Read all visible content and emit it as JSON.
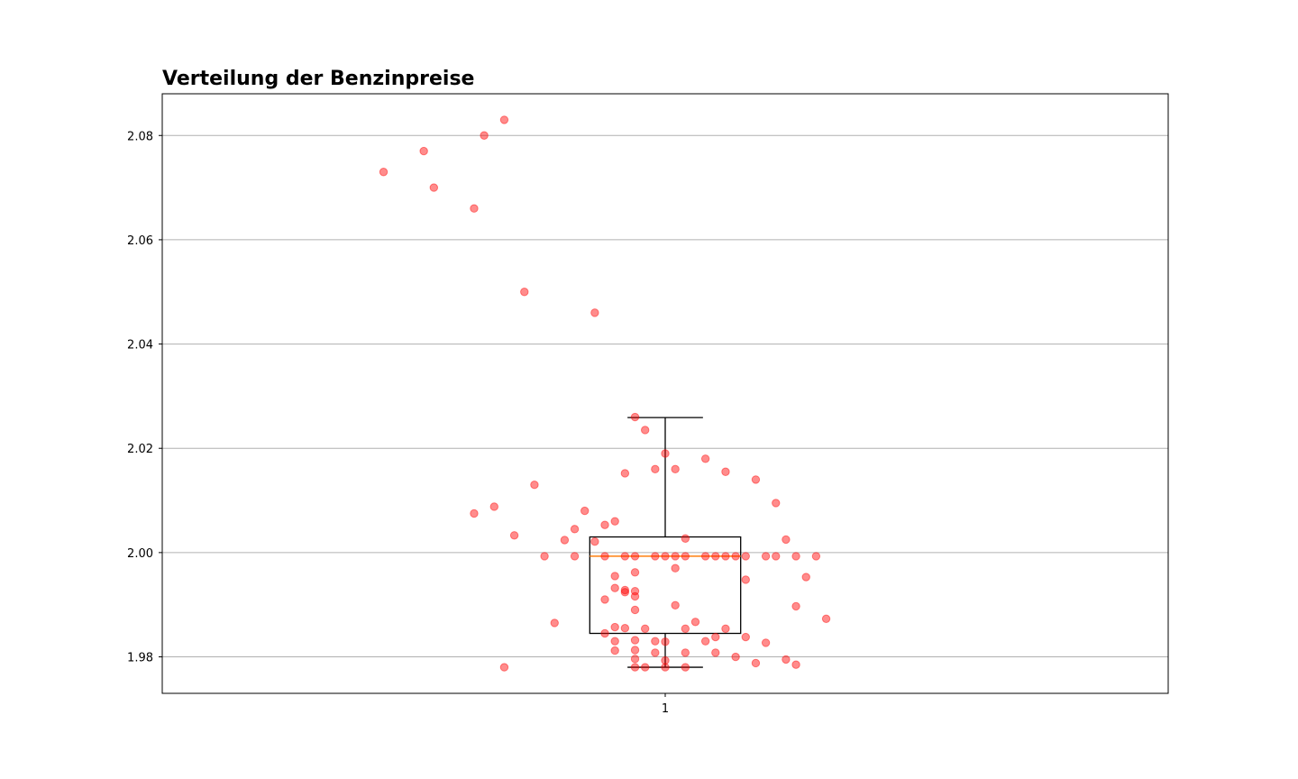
{
  "chart_data": {
    "type": "box",
    "title": "Verteilung der Benzinpreise",
    "xlabel": "",
    "ylabel": "",
    "categories": [
      "1"
    ],
    "ylim": [
      1.973,
      2.088
    ],
    "y_ticks": [
      "1.98",
      "2.00",
      "2.02",
      "2.04",
      "2.06",
      "2.08"
    ],
    "grid": "horizontal",
    "box": {
      "whisker_low": 1.978,
      "q1": 1.9845,
      "median": 1.9993,
      "q3": 2.003,
      "whisker_high": 2.0259
    },
    "colors": {
      "box": "#000000",
      "median": "#ff7f0e",
      "points": "#ff0000"
    },
    "points": [
      {
        "x": 0.84,
        "y": 2.083
      },
      {
        "x": 0.82,
        "y": 2.08
      },
      {
        "x": 0.76,
        "y": 2.077
      },
      {
        "x": 0.72,
        "y": 2.073
      },
      {
        "x": 0.77,
        "y": 2.07
      },
      {
        "x": 0.81,
        "y": 2.066
      },
      {
        "x": 0.86,
        "y": 2.05
      },
      {
        "x": 0.93,
        "y": 2.046
      },
      {
        "x": 0.97,
        "y": 2.026
      },
      {
        "x": 0.98,
        "y": 2.0235
      },
      {
        "x": 1.0,
        "y": 2.019
      },
      {
        "x": 1.04,
        "y": 2.018
      },
      {
        "x": 0.99,
        "y": 2.016
      },
      {
        "x": 1.01,
        "y": 2.016
      },
      {
        "x": 1.06,
        "y": 2.0155
      },
      {
        "x": 0.96,
        "y": 2.0152
      },
      {
        "x": 1.09,
        "y": 2.014
      },
      {
        "x": 0.87,
        "y": 2.013
      },
      {
        "x": 1.11,
        "y": 2.0095
      },
      {
        "x": 0.83,
        "y": 2.0088
      },
      {
        "x": 0.92,
        "y": 2.008
      },
      {
        "x": 0.81,
        "y": 2.0075
      },
      {
        "x": 0.95,
        "y": 2.006
      },
      {
        "x": 0.94,
        "y": 2.0053
      },
      {
        "x": 0.91,
        "y": 2.0045
      },
      {
        "x": 0.85,
        "y": 2.0033
      },
      {
        "x": 1.02,
        "y": 2.0027
      },
      {
        "x": 1.12,
        "y": 2.0025
      },
      {
        "x": 0.9,
        "y": 2.0024
      },
      {
        "x": 0.93,
        "y": 2.0021
      },
      {
        "x": 0.88,
        "y": 1.9993
      },
      {
        "x": 0.91,
        "y": 1.9993
      },
      {
        "x": 0.94,
        "y": 1.9993
      },
      {
        "x": 0.96,
        "y": 1.9993
      },
      {
        "x": 0.97,
        "y": 1.9993
      },
      {
        "x": 0.99,
        "y": 1.9993
      },
      {
        "x": 1.0,
        "y": 1.9993
      },
      {
        "x": 1.01,
        "y": 1.9993
      },
      {
        "x": 1.02,
        "y": 1.9993
      },
      {
        "x": 1.04,
        "y": 1.9993
      },
      {
        "x": 1.05,
        "y": 1.9993
      },
      {
        "x": 1.06,
        "y": 1.9993
      },
      {
        "x": 1.07,
        "y": 1.9993
      },
      {
        "x": 1.08,
        "y": 1.9993
      },
      {
        "x": 1.1,
        "y": 1.9993
      },
      {
        "x": 1.11,
        "y": 1.9993
      },
      {
        "x": 1.13,
        "y": 1.9993
      },
      {
        "x": 1.15,
        "y": 1.9993
      },
      {
        "x": 1.01,
        "y": 1.997
      },
      {
        "x": 0.97,
        "y": 1.9962
      },
      {
        "x": 0.95,
        "y": 1.9955
      },
      {
        "x": 1.14,
        "y": 1.9953
      },
      {
        "x": 1.08,
        "y": 1.9948
      },
      {
        "x": 0.95,
        "y": 1.9932
      },
      {
        "x": 0.96,
        "y": 1.9928
      },
      {
        "x": 0.97,
        "y": 1.9926
      },
      {
        "x": 0.96,
        "y": 1.9924
      },
      {
        "x": 0.97,
        "y": 1.9916
      },
      {
        "x": 0.94,
        "y": 1.991
      },
      {
        "x": 1.01,
        "y": 1.9899
      },
      {
        "x": 1.13,
        "y": 1.9897
      },
      {
        "x": 0.97,
        "y": 1.989
      },
      {
        "x": 1.16,
        "y": 1.9873
      },
      {
        "x": 0.89,
        "y": 1.9865
      },
      {
        "x": 1.03,
        "y": 1.9867
      },
      {
        "x": 0.95,
        "y": 1.9857
      },
      {
        "x": 0.96,
        "y": 1.9855
      },
      {
        "x": 0.98,
        "y": 1.9854
      },
      {
        "x": 1.02,
        "y": 1.9854
      },
      {
        "x": 1.06,
        "y": 1.9854
      },
      {
        "x": 0.94,
        "y": 1.9845
      },
      {
        "x": 1.05,
        "y": 1.9838
      },
      {
        "x": 1.08,
        "y": 1.9838
      },
      {
        "x": 0.97,
        "y": 1.9832
      },
      {
        "x": 0.95,
        "y": 1.983
      },
      {
        "x": 0.99,
        "y": 1.983
      },
      {
        "x": 1.04,
        "y": 1.983
      },
      {
        "x": 1.0,
        "y": 1.9829
      },
      {
        "x": 1.1,
        "y": 1.9827
      },
      {
        "x": 0.95,
        "y": 1.9812
      },
      {
        "x": 0.97,
        "y": 1.9813
      },
      {
        "x": 0.99,
        "y": 1.9808
      },
      {
        "x": 1.02,
        "y": 1.9808
      },
      {
        "x": 1.05,
        "y": 1.9808
      },
      {
        "x": 0.97,
        "y": 1.9796
      },
      {
        "x": 1.0,
        "y": 1.9793
      },
      {
        "x": 1.07,
        "y": 1.98
      },
      {
        "x": 1.12,
        "y": 1.9795
      },
      {
        "x": 1.09,
        "y": 1.9788
      },
      {
        "x": 1.13,
        "y": 1.9785
      },
      {
        "x": 0.84,
        "y": 1.978
      },
      {
        "x": 0.97,
        "y": 1.978
      },
      {
        "x": 0.98,
        "y": 1.978
      },
      {
        "x": 1.0,
        "y": 1.978
      },
      {
        "x": 1.02,
        "y": 1.978
      }
    ]
  }
}
